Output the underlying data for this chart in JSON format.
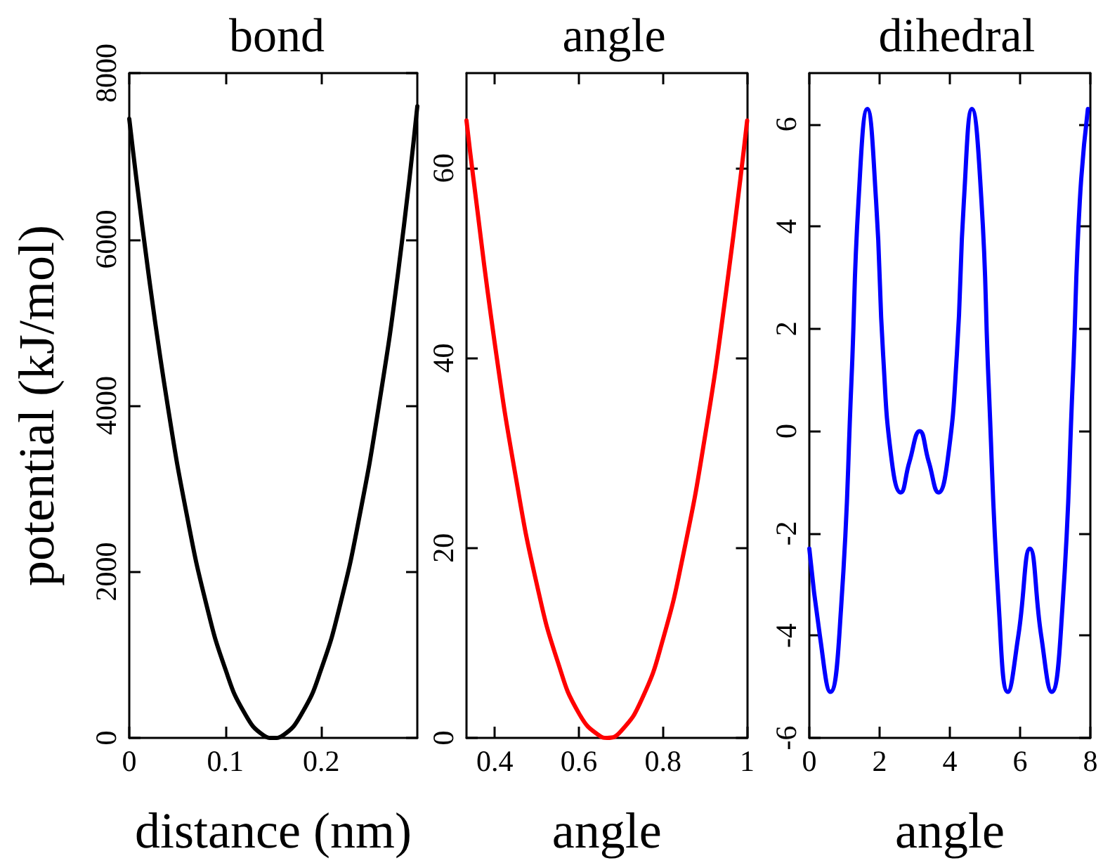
{
  "chart_data": [
    {
      "type": "line",
      "title": "bond",
      "xlabel": "distance (nm)",
      "ylabel": "potential (kJ/mol)",
      "xlim": [
        0,
        0.3
      ],
      "xticks": [
        0,
        0.1,
        0.2
      ],
      "ylim": [
        0,
        8000
      ],
      "yticks": [
        0,
        2000,
        4000,
        6000,
        8000
      ],
      "grid": false,
      "marker": "none",
      "line_style": "solid",
      "x": [
        0,
        0.02,
        0.04,
        0.06,
        0.08,
        0.1,
        0.12,
        0.14,
        0.15,
        0.16,
        0.18,
        0.2,
        0.22,
        0.24,
        0.26,
        0.28,
        0.3
      ],
      "series": [
        {
          "color": "#000000",
          "values": [
            7450,
            5590,
            4000,
            2680,
            1620,
            830,
            300,
            30,
            0,
            30,
            300,
            830,
            1620,
            2680,
            4000,
            5600,
            7600
          ]
        }
      ]
    },
    {
      "type": "line",
      "title": "angle",
      "xlabel": "angle",
      "xlim": [
        0.333,
        1
      ],
      "xticks": [
        0.4,
        0.6,
        0.8,
        1
      ],
      "ylim": [
        0,
        70
      ],
      "yticks": [
        0,
        20,
        40,
        60
      ],
      "grid": false,
      "marker": "none",
      "line_style": "solid",
      "x": [
        0.333,
        0.35,
        0.4,
        0.45,
        0.5,
        0.55,
        0.6,
        0.65,
        0.667,
        0.7,
        0.75,
        0.8,
        0.85,
        0.9,
        0.95,
        1
      ],
      "series": [
        {
          "color": "#ff0000",
          "values": [
            65,
            58.7,
            41.6,
            27.5,
            16.2,
            8,
            2.6,
            0.2,
            0,
            0.7,
            4.1,
            10.4,
            19.7,
            31.8,
            47,
            65
          ]
        }
      ]
    },
    {
      "type": "line",
      "title": "dihedral",
      "xlabel": "angle",
      "xlim": [
        0,
        8
      ],
      "xticks": [
        0,
        2,
        4,
        6,
        8
      ],
      "ylim": [
        -6,
        7
      ],
      "yticks": [
        -6,
        -4,
        -2,
        0,
        2,
        4,
        6
      ],
      "grid": false,
      "marker": "none",
      "line_style": "solid",
      "x": [
        0,
        0.3,
        0.6,
        0.9,
        1.2,
        1.4,
        1.65,
        1.9,
        2.1,
        2.35,
        2.6,
        2.85,
        3.14,
        3.4,
        3.68,
        3.93,
        4.2,
        4.4,
        4.63,
        4.9,
        5.1,
        5.4,
        5.65,
        5.95,
        6.28,
        6.6,
        6.9,
        7.2,
        7.5,
        7.7,
        7.93
      ],
      "series": [
        {
          "color": "#0000ff",
          "values": [
            -2.3,
            -4,
            -5.1,
            -3.5,
            1,
            4.5,
            6.3,
            4.5,
            1.5,
            -0.6,
            -1.2,
            -0.6,
            0,
            -0.6,
            -1.2,
            -0.6,
            1.5,
            4.5,
            6.3,
            4.5,
            1,
            -3.5,
            -5.1,
            -4,
            -2.3,
            -4,
            -5.1,
            -3.5,
            1,
            4.5,
            6.3
          ]
        }
      ]
    }
  ]
}
